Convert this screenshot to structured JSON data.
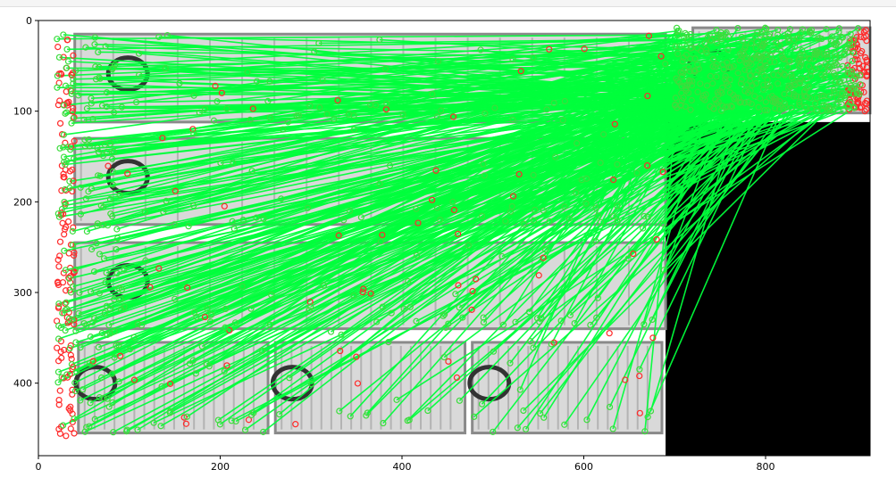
{
  "chart_data": {
    "type": "scatter",
    "title": "",
    "xlabel": "",
    "ylabel": "",
    "xlim": [
      0,
      915
    ],
    "ylim": [
      480,
      0
    ],
    "x_ticks": [
      0,
      200,
      400,
      600,
      800
    ],
    "y_ticks": [
      0,
      100,
      200,
      300,
      400
    ],
    "grid": false,
    "colors": {
      "match_line": "#00ff3c",
      "keypoint_match": "#3ddc3d",
      "keypoint_unmatched": "#ff2a2a",
      "pad": "#000000",
      "image_bg": "#ffffff",
      "panel_gray": "#8a8a8a"
    },
    "left_image": {
      "extent_x": [
        0,
        690
      ],
      "extent_y": [
        0,
        480
      ]
    },
    "right_image": {
      "extent_x": [
        690,
        915
      ],
      "extent_y": [
        0,
        112
      ]
    },
    "padding_region": {
      "x": [
        690,
        915
      ],
      "y": [
        112,
        480
      ]
    },
    "panels": [
      {
        "row": 1,
        "cols": 1,
        "x": [
          40,
          690
        ],
        "y": [
          15,
          112
        ]
      },
      {
        "row": 2,
        "cols": 1,
        "x": [
          40,
          690
        ],
        "y": [
          130,
          225
        ]
      },
      {
        "row": 3,
        "cols": 1,
        "x": [
          40,
          690
        ],
        "y": [
          245,
          340
        ]
      },
      {
        "row": 4,
        "cols": 3,
        "x": [
          40,
          690
        ],
        "y": [
          355,
          455
        ]
      }
    ],
    "right_panel": {
      "x": [
        720,
        915
      ],
      "y": [
        8,
        102
      ]
    },
    "lines": {
      "count": 420,
      "source_x_range": [
        20,
        690
      ],
      "source_y_range": [
        15,
        455
      ],
      "target_x_range": [
        700,
        905
      ],
      "target_y_range": [
        8,
        100
      ]
    },
    "unmatched_keypoints": {
      "count": 260
    }
  }
}
